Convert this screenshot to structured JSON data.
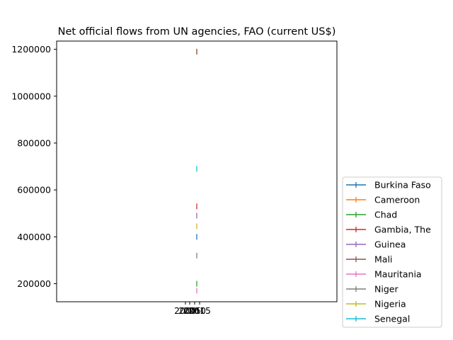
{
  "chart_data": {
    "type": "line",
    "title": "Net official flows from UN agencies, FAO (current US$)",
    "xlabel": "",
    "ylabel": "",
    "x_tick_labels": [
      "2000",
      "2005",
      "2010",
      "2015"
    ],
    "y_ticks": [
      200000,
      400000,
      600000,
      800000,
      1000000,
      1200000
    ],
    "y_tick_labels": [
      "200000",
      "400000",
      "600000",
      "800000",
      "1000000",
      "1200000"
    ],
    "ylim": [
      123000,
      1235000
    ],
    "legend_position": "lower-right, outside plot",
    "grid": false,
    "x": [
      2014
    ],
    "series": [
      {
        "name": "Burkina Faso",
        "color": "#1f77b4",
        "values": [
          400000
        ]
      },
      {
        "name": "Cameroon",
        "color": "#ff7f0e",
        "values": [
          1190000
        ]
      },
      {
        "name": "Chad",
        "color": "#2ca02c",
        "values": [
          200000
        ]
      },
      {
        "name": "Gambia, The",
        "color": "#d62728",
        "values": [
          530000
        ]
      },
      {
        "name": "Guinea",
        "color": "#9467bd",
        "values": [
          490000
        ]
      },
      {
        "name": "Mali",
        "color": "#8c564b",
        "values": [
          1190000
        ]
      },
      {
        "name": "Mauritania",
        "color": "#e377c2",
        "values": [
          170000
        ]
      },
      {
        "name": "Niger",
        "color": "#7f7f7f",
        "values": [
          320000
        ]
      },
      {
        "name": "Nigeria",
        "color": "#bcbd22",
        "values": [
          445000
        ]
      },
      {
        "name": "Senegal",
        "color": "#17becf",
        "values": [
          690000
        ]
      }
    ]
  }
}
